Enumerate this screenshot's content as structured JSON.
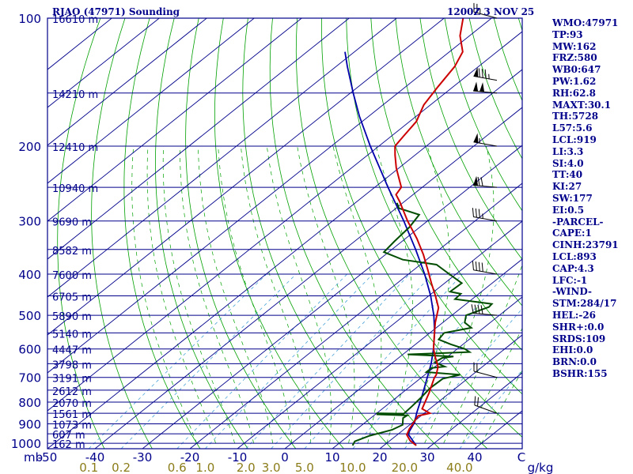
{
  "header": {
    "title": "RJAO (47971) Sounding",
    "time": "1200Z  3 NOV 25"
  },
  "colors": {
    "frame": "#00008b",
    "isobar": "#00008b",
    "isotherm": "#00008b",
    "dry_adiabat": "#00a000",
    "moist_adiabat": "#00a000",
    "mixing_ratio": "#4aa3d8",
    "temperature": "#cc0000",
    "dewpoint": "#004d00",
    "parcel": "#0000aa",
    "wind_barb": "#000000",
    "text": "#00008b",
    "mixing_label": "#8b7d1a"
  },
  "indices": [
    "WMO:47971",
    "TP:93",
    "MW:162",
    "FRZ:580",
    "WB0:647",
    "PW:1.62",
    "RH:62.8",
    "MAXT:30.1",
    "TH:5728",
    "L57:5.6",
    "LCL:919",
    "LI:3.3",
    "SI:4.0",
    "TT:40",
    "KI:27",
    "SW:177",
    "EI:0.5",
    "-PARCEL-",
    "CAPE:1",
    "CINH:23791",
    "LCL:893",
    "CAP:4.3",
    "LFC:-1",
    "-WIND-",
    "STM:284/17",
    "HEL:-26",
    "SHR+:0.0",
    "SRDS:109",
    "EHI:0.0",
    "BRN:0.0",
    "BSHR:155"
  ],
  "chart_data": {
    "type": "skew-t log-p",
    "title": "RJAO (47971) Sounding",
    "subtitle": "1200Z  3 NOV 25",
    "x_unit": "C",
    "y_unit": "mb",
    "pressure_ticks": [
      100,
      200,
      300,
      400,
      500,
      600,
      700,
      800,
      900,
      1000
    ],
    "temperature_ticks": [
      -50,
      -40,
      -30,
      -20,
      -10,
      0,
      10,
      20,
      30,
      40
    ],
    "xlim": [
      -50,
      50
    ],
    "ylim": [
      1030,
      100
    ],
    "mixing_ratio_labels": [
      "0.1",
      "0.2",
      "0.6",
      "1.0",
      "2.0",
      "3.0",
      "5.0",
      "10.0",
      "20.0",
      "40.0"
    ],
    "mixing_ratio_unit": "g/kg",
    "height_labels": [
      {
        "p": 100,
        "label": "16610 m"
      },
      {
        "p": 150,
        "label": "14210 m"
      },
      {
        "p": 200,
        "label": "12410 m"
      },
      {
        "p": 250,
        "label": "10940 m"
      },
      {
        "p": 300,
        "label": "9690 m"
      },
      {
        "p": 350,
        "label": "8582 m"
      },
      {
        "p": 400,
        "label": "7600 m"
      },
      {
        "p": 450,
        "label": "6705 m"
      },
      {
        "p": 500,
        "label": "5890 m"
      },
      {
        "p": 550,
        "label": "5140 m"
      },
      {
        "p": 600,
        "label": "4447 m"
      },
      {
        "p": 650,
        "label": "3798 m"
      },
      {
        "p": 700,
        "label": "3191 m"
      },
      {
        "p": 750,
        "label": "2612 m"
      },
      {
        "p": 800,
        "label": "2070 m"
      },
      {
        "p": 850,
        "label": "1561 m"
      },
      {
        "p": 900,
        "label": "1073 m"
      },
      {
        "p": 950,
        "label": "607 m"
      },
      {
        "p": 1000,
        "label": "162 m"
      }
    ],
    "temperature": [
      [
        1012,
        26.8
      ],
      [
        985,
        24.2
      ],
      [
        955,
        22
      ],
      [
        925,
        21
      ],
      [
        900,
        20.4
      ],
      [
        862,
        19.4
      ],
      [
        850,
        21.2
      ],
      [
        830,
        18.4
      ],
      [
        760,
        15.6
      ],
      [
        702,
        12.8
      ],
      [
        690,
        12.4
      ],
      [
        660,
        10.6
      ],
      [
        630,
        7.8
      ],
      [
        600,
        5
      ],
      [
        560,
        1.8
      ],
      [
        520,
        -1.6
      ],
      [
        480,
        -4.8
      ],
      [
        450,
        -8.6
      ],
      [
        420,
        -12.8
      ],
      [
        390,
        -17.2
      ],
      [
        360,
        -22
      ],
      [
        330,
        -27.6
      ],
      [
        300,
        -34.2
      ],
      [
        270,
        -41
      ],
      [
        260,
        -43.6
      ],
      [
        250,
        -44.4
      ],
      [
        240,
        -46.8
      ],
      [
        225,
        -50.6
      ],
      [
        210,
        -54.2
      ],
      [
        200,
        -56.6
      ],
      [
        190,
        -57.4
      ],
      [
        175,
        -58.6
      ],
      [
        160,
        -61.4
      ],
      [
        145,
        -63.2
      ],
      [
        130,
        -65
      ],
      [
        120,
        -67.2
      ],
      [
        110,
        -72
      ],
      [
        100,
        -76
      ]
    ],
    "dewpoint": [
      [
        1012,
        13.4
      ],
      [
        990,
        12.8
      ],
      [
        960,
        14.4
      ],
      [
        930,
        17.6
      ],
      [
        905,
        18.5
      ],
      [
        872,
        16.8
      ],
      [
        860,
        17
      ],
      [
        855,
        10.4
      ],
      [
        850,
        10.1
      ],
      [
        852,
        15.8
      ],
      [
        820,
        15.6
      ],
      [
        780,
        15.2
      ],
      [
        742,
        14.6
      ],
      [
        705,
        14.8
      ],
      [
        690,
        17.4
      ],
      [
        680,
        9.6
      ],
      [
        665,
        9.6
      ],
      [
        660,
        12
      ],
      [
        645,
        8.8
      ],
      [
        630,
        9.2
      ],
      [
        625,
        11.2
      ],
      [
        618,
        1
      ],
      [
        610,
        13.4
      ],
      [
        600,
        11.6
      ],
      [
        585,
        7.4
      ],
      [
        570,
        3.6
      ],
      [
        550,
        3
      ],
      [
        535,
        7.4
      ],
      [
        520,
        4.6
      ],
      [
        500,
        3
      ],
      [
        478,
        5.6
      ],
      [
        470,
        5.4
      ],
      [
        458,
        -3.6
      ],
      [
        445,
        -3.8
      ],
      [
        440,
        -6.6
      ],
      [
        420,
        -6.4
      ],
      [
        400,
        -11.4
      ],
      [
        380,
        -16.6
      ],
      [
        370,
        -25
      ],
      [
        355,
        -31
      ],
      [
        335,
        -31.6
      ],
      [
        310,
        -32.2
      ],
      [
        290,
        -33.4
      ],
      [
        280,
        -39.4
      ],
      [
        272,
        -41.2
      ]
    ],
    "parcel": [
      [
        1012,
        26.8
      ],
      [
        950,
        22
      ],
      [
        893,
        20.4
      ],
      [
        850,
        18.4
      ],
      [
        800,
        16.2
      ],
      [
        750,
        13.8
      ],
      [
        700,
        11.2
      ],
      [
        650,
        8.4
      ],
      [
        600,
        5
      ],
      [
        550,
        1
      ],
      [
        500,
        -3.8
      ],
      [
        450,
        -9.6
      ],
      [
        400,
        -16.6
      ],
      [
        350,
        -25
      ],
      [
        300,
        -35
      ],
      [
        250,
        -47.2
      ],
      [
        200,
        -61.8
      ],
      [
        170,
        -72
      ],
      [
        150,
        -79.4
      ],
      [
        130,
        -87.6
      ],
      [
        120,
        -92
      ]
    ],
    "wind_barbs": [
      {
        "p": 850,
        "dir": 290,
        "speed_kt": 20
      },
      {
        "p": 700,
        "dir": 285,
        "speed_kt": 20
      },
      {
        "p": 500,
        "dir": 275,
        "speed_kt": 40
      },
      {
        "p": 400,
        "dir": 280,
        "speed_kt": 40
      },
      {
        "p": 300,
        "dir": 280,
        "speed_kt": 35
      },
      {
        "p": 250,
        "dir": 275,
        "speed_kt": 70
      },
      {
        "p": 200,
        "dir": 280,
        "speed_kt": 55
      },
      {
        "p": 150,
        "dir": 275,
        "speed_kt": 100
      },
      {
        "p": 140,
        "dir": 280,
        "speed_kt": 85
      },
      {
        "p": 100,
        "dir": 285,
        "speed_kt": 25
      }
    ]
  }
}
